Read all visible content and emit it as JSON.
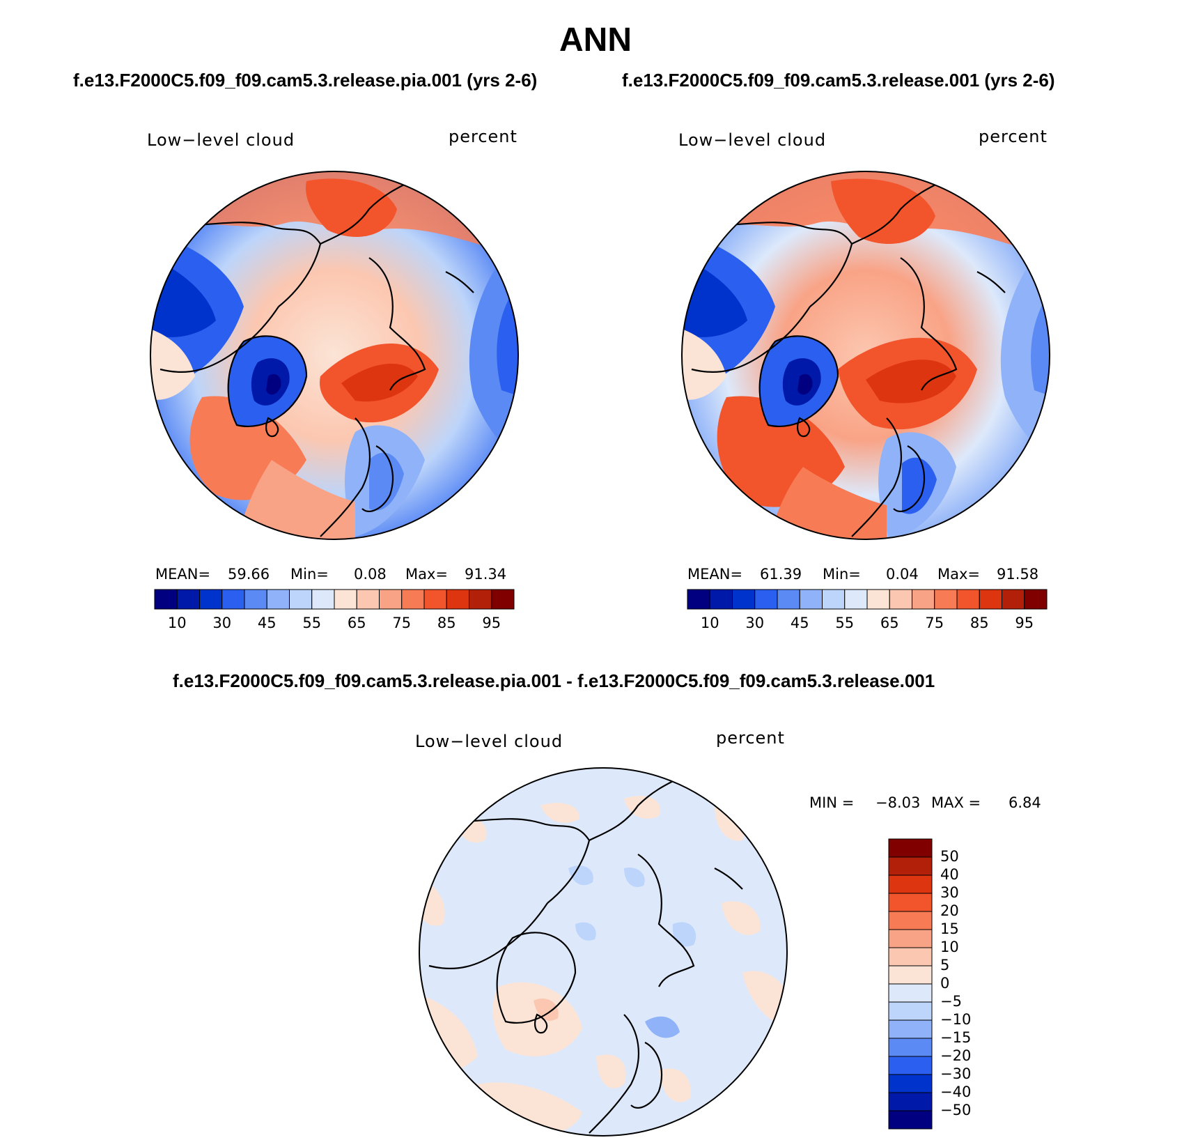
{
  "figure_title": "ANN",
  "panels": [
    {
      "case_title": "f.e13.F2000C5.f09_f09.cam5.3.release.pia.001 (yrs 2-6)",
      "variable": "Low−level cloud",
      "units": "percent",
      "stats": {
        "mean_label": "MEAN=",
        "mean": "59.66",
        "min_label": "Min=",
        "min": "0.08",
        "max_label": "Max=",
        "max": "91.34"
      }
    },
    {
      "case_title": "f.e13.F2000C5.f09_f09.cam5.3.release.001 (yrs 2-6)",
      "variable": "Low−level cloud",
      "units": "percent",
      "stats": {
        "mean_label": "MEAN=",
        "mean": "61.39",
        "min_label": "Min=",
        "min": "0.04",
        "max_label": "Max=",
        "max": "91.58"
      }
    }
  ],
  "diff_panel": {
    "case_title": "f.e13.F2000C5.f09_f09.cam5.3.release.pia.001 - f.e13.F2000C5.f09_f09.cam5.3.release.001",
    "variable": "Low−level cloud",
    "units": "percent",
    "stats": {
      "min_label": "MIN =",
      "min": "−8.03",
      "max_label": "MAX =",
      "max": "6.84"
    }
  },
  "field_colorbar": {
    "colors": [
      "#000080",
      "#0019a8",
      "#0033cc",
      "#2a5ff0",
      "#5b8af5",
      "#8fb2f8",
      "#bdd5fa",
      "#dde9fb",
      "#fbe4d6",
      "#fcc7b0",
      "#f9a386",
      "#f77c56",
      "#f2542c",
      "#dd3510",
      "#b3200a",
      "#800000"
    ],
    "labels": [
      "10",
      "30",
      "45",
      "55",
      "65",
      "75",
      "85",
      "95"
    ]
  },
  "diff_colorbar": {
    "colors": [
      "#800000",
      "#b3200a",
      "#dd3510",
      "#f2542c",
      "#f77c56",
      "#f9a386",
      "#fcc7b0",
      "#fbe4d6",
      "#dde9fb",
      "#bdd5fa",
      "#8fb2f8",
      "#5b8af5",
      "#2a5ff0",
      "#0033cc",
      "#0019a8",
      "#000080"
    ],
    "labels": [
      "50",
      "40",
      "30",
      "20",
      "15",
      "10",
      "5",
      "0",
      "−5",
      "−10",
      "−15",
      "−20",
      "−30",
      "−40",
      "−50"
    ]
  }
}
